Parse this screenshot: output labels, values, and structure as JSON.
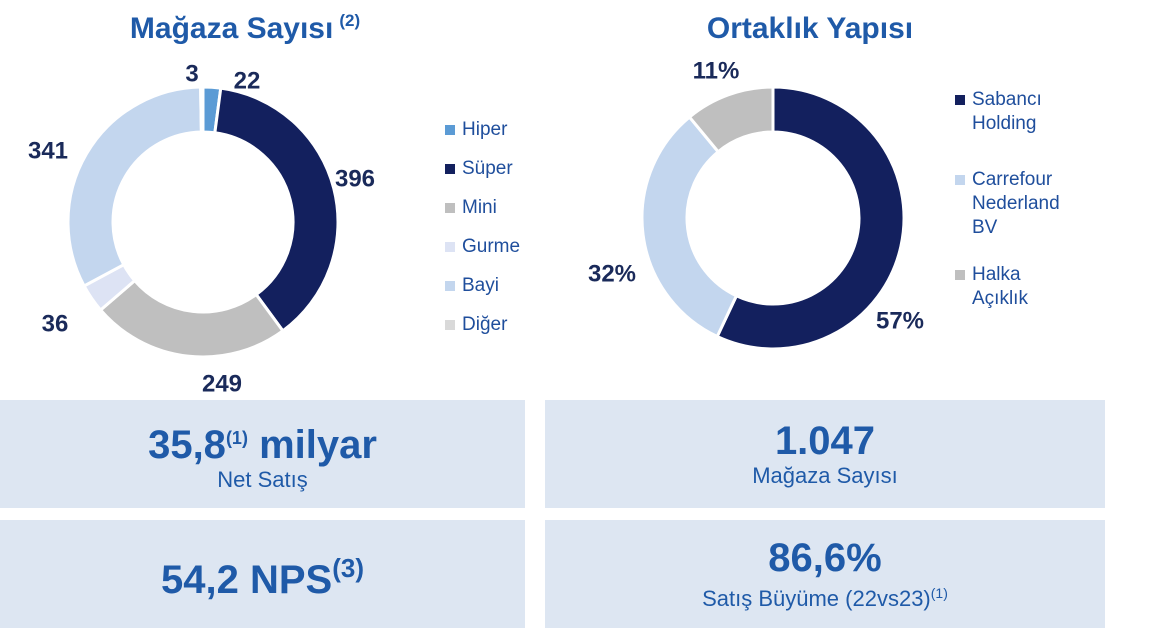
{
  "chart_data": [
    {
      "type": "pie",
      "title": "Mağaza Sayısı",
      "title_note": "(2)",
      "categories": [
        "Hiper",
        "Süper",
        "Mini",
        "Gurme",
        "Bayi",
        "Diğer"
      ],
      "values": [
        22,
        396,
        249,
        36,
        341,
        3
      ],
      "colors": [
        "#5b9bd5",
        "#13205e",
        "#bfbfbf",
        "#dde3f4",
        "#c3d6ee",
        "#d9d9d9"
      ]
    },
    {
      "type": "pie",
      "title": "Ortaklık Yapısı",
      "categories": [
        "Sabancı Holding",
        "Carrefour Nederland BV",
        "Halka Açıklık"
      ],
      "values": [
        57,
        32,
        11
      ],
      "value_labels": [
        "57%",
        "32%",
        "11%"
      ],
      "colors": [
        "#13205e",
        "#c3d6ee",
        "#bfbfbf"
      ]
    }
  ],
  "kpis": [
    {
      "value": "35,8",
      "note": "(1)",
      "unit": "milyar",
      "label": "Net Satış"
    },
    {
      "value": "1.047",
      "label": "Mağaza Sayısı"
    },
    {
      "value": "54,2 NPS",
      "note": "(3)"
    },
    {
      "value": "86,6%",
      "label": "Satış Büyüme (22vs23)",
      "label_note": "(1)"
    }
  ]
}
